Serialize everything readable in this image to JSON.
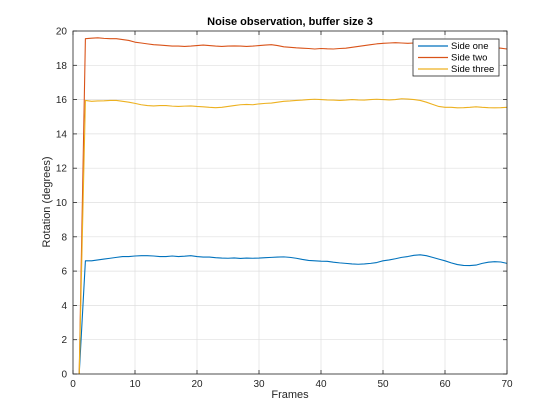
{
  "chart_data": {
    "type": "line",
    "title": "Noise observation, buffer size 3",
    "xlabel": "Frames",
    "ylabel": "Rotation (degrees)",
    "xlim": [
      0,
      70
    ],
    "ylim": [
      0,
      20
    ],
    "xticks": [
      0,
      10,
      20,
      30,
      40,
      50,
      60,
      70
    ],
    "yticks": [
      0,
      2,
      4,
      6,
      8,
      10,
      12,
      14,
      16,
      18,
      20
    ],
    "grid": true,
    "legend_position": "top-right",
    "series": [
      {
        "name": "Side one",
        "color": "#0072BD",
        "x": [
          1,
          2,
          3,
          4,
          5,
          6,
          7,
          8,
          9,
          10,
          11,
          12,
          13,
          14,
          15,
          16,
          17,
          18,
          19,
          20,
          21,
          22,
          23,
          24,
          25,
          26,
          27,
          28,
          29,
          30,
          31,
          32,
          33,
          34,
          35,
          36,
          37,
          38,
          39,
          40,
          41,
          42,
          43,
          44,
          45,
          46,
          47,
          48,
          49,
          50,
          51,
          52,
          53,
          54,
          55,
          56,
          57,
          58,
          59,
          60,
          61,
          62,
          63,
          64,
          65,
          66,
          67,
          68,
          69,
          70
        ],
        "values": [
          0,
          6.6,
          6.6,
          6.65,
          6.7,
          6.75,
          6.8,
          6.85,
          6.85,
          6.88,
          6.9,
          6.9,
          6.88,
          6.85,
          6.85,
          6.88,
          6.85,
          6.87,
          6.9,
          6.85,
          6.82,
          6.82,
          6.78,
          6.76,
          6.75,
          6.77,
          6.74,
          6.76,
          6.75,
          6.76,
          6.78,
          6.8,
          6.82,
          6.83,
          6.8,
          6.75,
          6.68,
          6.62,
          6.6,
          6.58,
          6.57,
          6.52,
          6.48,
          6.45,
          6.42,
          6.4,
          6.42,
          6.45,
          6.5,
          6.6,
          6.65,
          6.72,
          6.8,
          6.85,
          6.92,
          6.95,
          6.9,
          6.8,
          6.7,
          6.6,
          6.48,
          6.38,
          6.33,
          6.32,
          6.35,
          6.45,
          6.52,
          6.55,
          6.53,
          6.45
        ]
      },
      {
        "name": "Side two",
        "color": "#D95319",
        "x": [
          1,
          2,
          3,
          4,
          5,
          6,
          7,
          8,
          9,
          10,
          11,
          12,
          13,
          14,
          15,
          16,
          17,
          18,
          19,
          20,
          21,
          22,
          23,
          24,
          25,
          26,
          27,
          28,
          29,
          30,
          31,
          32,
          33,
          34,
          35,
          36,
          37,
          38,
          39,
          40,
          41,
          42,
          43,
          44,
          45,
          46,
          47,
          48,
          49,
          50,
          51,
          52,
          53,
          54,
          55,
          56,
          57,
          58,
          59,
          60,
          61,
          62,
          63,
          64,
          65,
          66,
          67,
          68,
          69,
          70
        ],
        "values": [
          0,
          19.55,
          19.58,
          19.6,
          19.57,
          19.55,
          19.55,
          19.5,
          19.45,
          19.35,
          19.3,
          19.25,
          19.2,
          19.18,
          19.15,
          19.12,
          19.12,
          19.1,
          19.12,
          19.15,
          19.18,
          19.15,
          19.12,
          19.1,
          19.12,
          19.13,
          19.12,
          19.1,
          19.12,
          19.15,
          19.18,
          19.2,
          19.15,
          19.08,
          19.05,
          19.02,
          19.0,
          18.98,
          18.95,
          18.98,
          18.96,
          18.95,
          18.98,
          19.0,
          19.05,
          19.1,
          19.15,
          19.2,
          19.25,
          19.28,
          19.3,
          19.32,
          19.3,
          19.28,
          19.3,
          19.32,
          19.3,
          19.25,
          19.2,
          19.15,
          19.1,
          19.08,
          19.05,
          19.02,
          19.0,
          19.02,
          19.05,
          19.03,
          19.0,
          18.95
        ]
      },
      {
        "name": "Side three",
        "color": "#EDB120",
        "x": [
          1,
          2,
          3,
          4,
          5,
          6,
          7,
          8,
          9,
          10,
          11,
          12,
          13,
          14,
          15,
          16,
          17,
          18,
          19,
          20,
          21,
          22,
          23,
          24,
          25,
          26,
          27,
          28,
          29,
          30,
          31,
          32,
          33,
          34,
          35,
          36,
          37,
          38,
          39,
          40,
          41,
          42,
          43,
          44,
          45,
          46,
          47,
          48,
          49,
          50,
          51,
          52,
          53,
          54,
          55,
          56,
          57,
          58,
          59,
          60,
          61,
          62,
          63,
          64,
          65,
          66,
          67,
          68,
          69,
          70
        ],
        "values": [
          0,
          15.95,
          15.9,
          15.92,
          15.93,
          15.95,
          15.95,
          15.9,
          15.85,
          15.78,
          15.7,
          15.65,
          15.63,
          15.65,
          15.65,
          15.62,
          15.6,
          15.62,
          15.63,
          15.6,
          15.58,
          15.55,
          15.53,
          15.55,
          15.6,
          15.65,
          15.7,
          15.72,
          15.7,
          15.75,
          15.78,
          15.8,
          15.85,
          15.9,
          15.92,
          15.95,
          15.97,
          16.0,
          16.02,
          16.0,
          15.98,
          15.97,
          15.95,
          15.97,
          16.0,
          15.98,
          15.97,
          16.0,
          16.02,
          16.0,
          15.98,
          16.0,
          16.05,
          16.03,
          16.0,
          15.95,
          15.85,
          15.72,
          15.6,
          15.55,
          15.55,
          15.52,
          15.53,
          15.55,
          15.58,
          15.55,
          15.53,
          15.52,
          15.53,
          15.55
        ]
      }
    ]
  }
}
